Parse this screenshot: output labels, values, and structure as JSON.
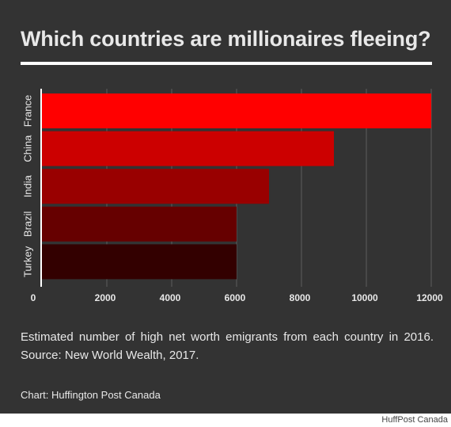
{
  "title": "Which countries are millionaires fleeing?",
  "caption": "Estimated number of high net worth emigrants from each country in 2016. Source: New World Wealth, 2017.",
  "credit": "Chart: Huffington Post Canada",
  "watermark": "HuffPost Canada",
  "colors": {
    "background": "#333333",
    "text": "#e8e8e8",
    "gridline": "#5c5c5c",
    "bars": [
      "#ff0000",
      "#cc0000",
      "#990000",
      "#660000",
      "#330000"
    ]
  },
  "chart_data": {
    "type": "bar",
    "orientation": "horizontal",
    "title": "Which countries are millionaires fleeing?",
    "categories": [
      "France",
      "China",
      "India",
      "Brazil",
      "Turkey"
    ],
    "values": [
      12000,
      9000,
      7000,
      6000,
      6000
    ],
    "xlim": [
      0,
      12000
    ],
    "xticks": [
      "0",
      "2000",
      "4000",
      "6000",
      "8000",
      "10000",
      "12000"
    ],
    "grid": true,
    "legend": "none"
  }
}
